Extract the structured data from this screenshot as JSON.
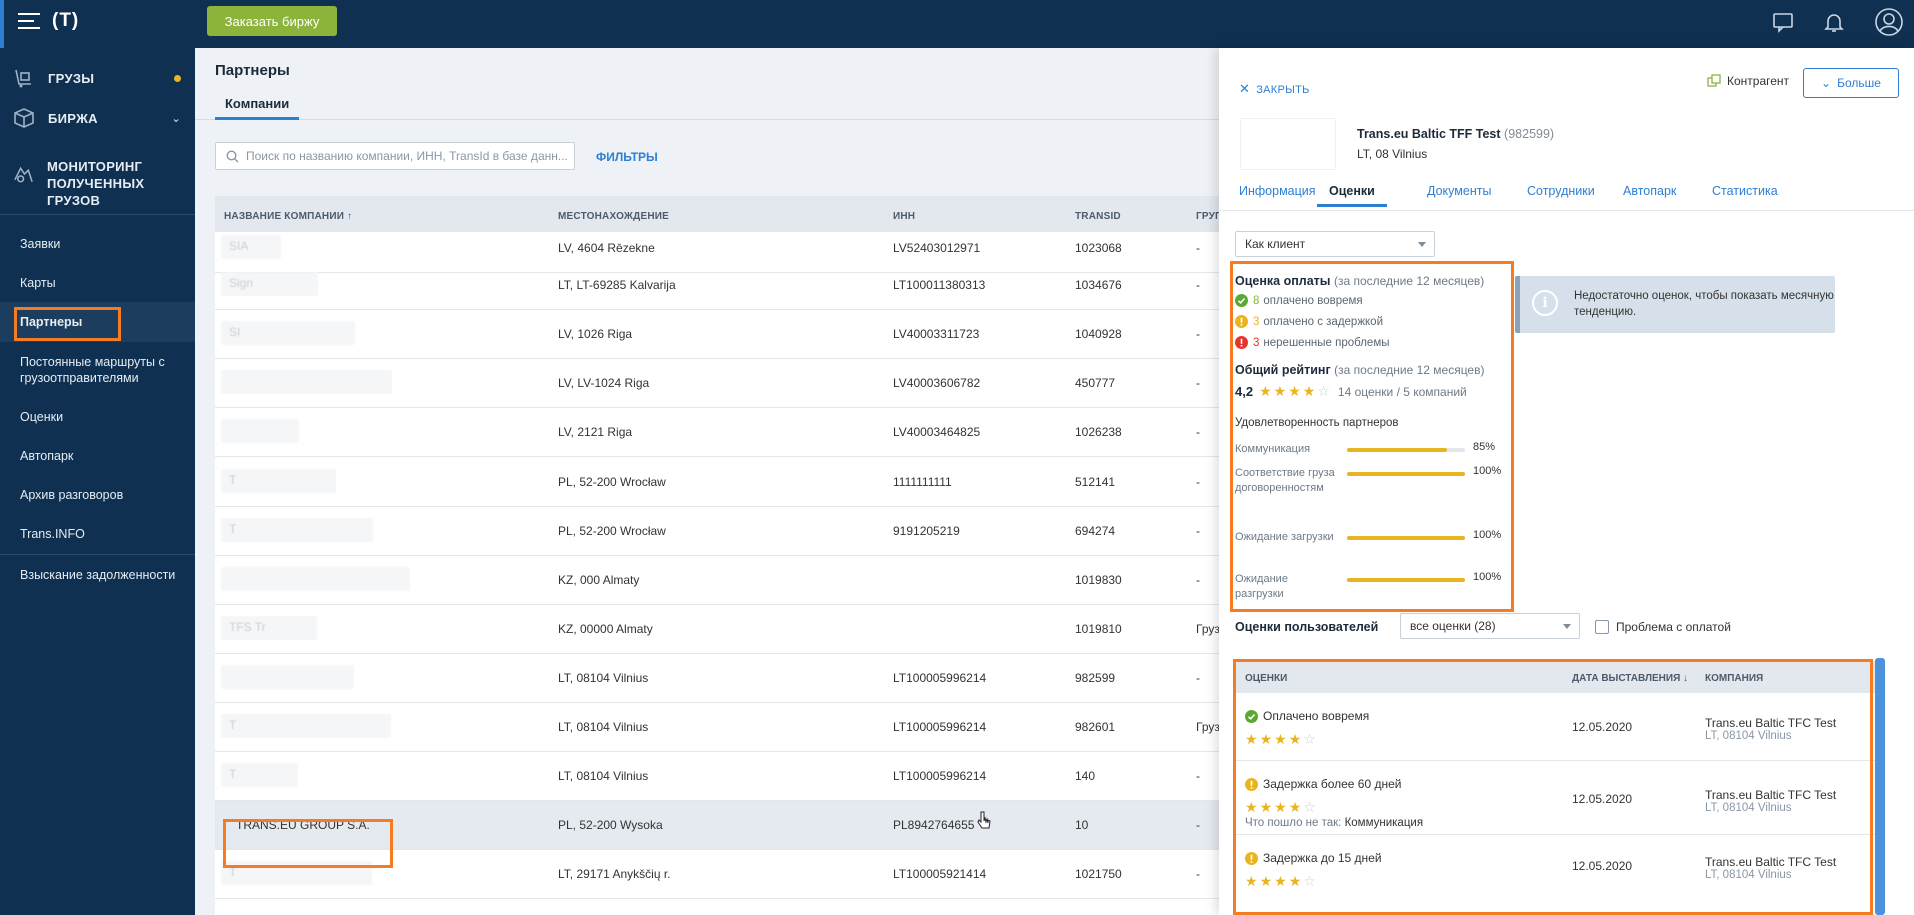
{
  "topbar": {
    "logo": "(T)",
    "order_button": "Заказать биржу"
  },
  "sidebar": {
    "main": [
      {
        "label": "ГРУЗЫ",
        "icon": "cargo-icon"
      },
      {
        "label": "БИРЖА",
        "icon": "exchange-icon"
      },
      {
        "label": "МОНИТОРИНГ",
        "label2": "ПОЛУЧЕННЫХ ГРУЗОВ",
        "icon": "monitoring-icon"
      }
    ],
    "items": [
      {
        "label": "Заявки"
      },
      {
        "label": "Карты"
      },
      {
        "label": "Партнеры"
      },
      {
        "label": "Постоянные маршруты с",
        "label2": "грузоотправителями"
      },
      {
        "label": "Оценки"
      },
      {
        "label": "Автопарк"
      },
      {
        "label": "Архив разговоров"
      },
      {
        "label": "Trans.INFO"
      },
      {
        "label": "Взыскание задолженности"
      }
    ]
  },
  "main": {
    "title": "Партнеры",
    "tab": "Компании",
    "search_placeholder": "Поиск по названию компании, ИНН, TransId в базе данн...",
    "filters": "ФИЛЬТРЫ",
    "columns": [
      "НАЗВАНИЕ КОМПАНИИ ↑",
      "МЕСТОНАХОЖДЕНИЕ",
      "ИНН",
      "TRANSID",
      "ГРУП"
    ],
    "rows": [
      {
        "name": "SIA",
        "location": "LV, 4604 Rēzekne",
        "inn": "LV52403012971",
        "transid": "1023068",
        "group": "-"
      },
      {
        "name": "Sign",
        "location": "LT, LT-69285 Kalvarija",
        "inn": "LT100011380313",
        "transid": "1034676",
        "group": "-"
      },
      {
        "name": "SI",
        "location": "LV, 1026 Riga",
        "inn": "LV40003311723",
        "transid": "1040928",
        "group": "-"
      },
      {
        "name": "",
        "location": "LV, LV-1024 Riga",
        "inn": "LV40003606782",
        "transid": "450777",
        "group": "-"
      },
      {
        "name": "",
        "location": "LV, 2121 Riga",
        "inn": "LV40003464825",
        "transid": "1026238",
        "group": "-"
      },
      {
        "name": "T",
        "location": "PL, 52-200 Wrocław",
        "inn": "1111111111",
        "transid": "512141",
        "group": "-"
      },
      {
        "name": "T",
        "location": "PL, 52-200 Wrocław",
        "inn": "9191205219",
        "transid": "694274",
        "group": "-"
      },
      {
        "name": "",
        "location": "KZ, 000 Almaty",
        "inn": "",
        "transid": "1019830",
        "group": "-"
      },
      {
        "name": "TFS Tr",
        "location": "KZ, 00000 Almaty",
        "inn": "",
        "transid": "1019810",
        "group": "Груз"
      },
      {
        "name": "",
        "location": "LT, 08104 Vilnius",
        "inn": "LT100005996214",
        "transid": "982599",
        "group": "-"
      },
      {
        "name": "T",
        "location": "LT, 08104 Vilnius",
        "inn": "LT100005996214",
        "transid": "982601",
        "group": "Груз"
      },
      {
        "name": "T",
        "location": "LT, 08104 Vilnius",
        "inn": "LT100005996214",
        "transid": "140",
        "group": "-"
      },
      {
        "name": "TRANS.EU GROUP S.A.",
        "location": "PL, 52-200 Wysoka",
        "inn": "PL8942764655",
        "transid": "10",
        "group": "-"
      },
      {
        "name": "T",
        "location": "LT, 29171 Anykščių r.",
        "inn": "LT100005921414",
        "transid": "1021750",
        "group": "-"
      }
    ]
  },
  "panel": {
    "close": "ЗАКРЫТЬ",
    "contractor": "Контрагент",
    "more": "Больше",
    "company_name": "Trans.eu Baltic TFF Test",
    "company_id": "(982599)",
    "company_location": "LT, 08 Vilnius",
    "tabs": [
      "Информация",
      "Оценки",
      "Документы",
      "Сотрудники",
      "Автопарк",
      "Статистика"
    ],
    "role_select": "Как клиент",
    "payment_title": "Оценка оплаты",
    "payment_period": "(за последние 12 месяцев)",
    "payments": [
      {
        "count": "8",
        "text": "оплачено вовремя",
        "status": "ok"
      },
      {
        "count": "3",
        "text": "оплачено с задержкой",
        "status": "warn"
      },
      {
        "count": "3",
        "text": "нерешенные проблемы",
        "status": "error"
      }
    ],
    "overall_title": "Общий рейтинг",
    "overall_period": "(за последние 12 месяцев)",
    "overall_value": "4,2",
    "overall_stars": 4,
    "overall_summary": "14 оценки / 5 компаний",
    "satisfaction_title": "Удовлетворенность партнеров",
    "satisfaction": [
      {
        "label": "Коммуникация",
        "pct": "85%",
        "value": 0.85
      },
      {
        "label": "Соответствие груза договоренностям",
        "pct": "100%",
        "value": 1.0
      },
      {
        "label": "Ожидание загрузки",
        "pct": "100%",
        "value": 1.0
      },
      {
        "label": "Ожидание разгрузки",
        "pct": "100%",
        "value": 1.0
      }
    ],
    "info_text": "Недостаточно оценок, чтобы показать месячную тенденцию.",
    "users_title": "Оценки пользователей",
    "users_select": "все оценки (28)",
    "payment_problem": "Проблема с оплатой",
    "ratings_columns": [
      "ОЦЕНКИ",
      "ДАТА ВЫСТАВЛЕНИЯ ↓",
      "КОМПАНИЯ"
    ],
    "ratings": [
      {
        "title": "Оплачено вовремя",
        "status": "ok",
        "stars": 4,
        "date": "12.05.2020",
        "company": "Trans.eu Baltic TFC Test",
        "location": "LT, 08104 Vilnius",
        "what_label": "",
        "what": ""
      },
      {
        "title": "Задержка более 60 дней",
        "status": "warn",
        "stars": 4,
        "date": "12.05.2020",
        "company": "Trans.eu Baltic TFC Test",
        "location": "LT, 08104 Vilnius",
        "what_label": "Что пошло не так:",
        "what": "Коммуникация"
      },
      {
        "title": "Задержка до 15 дней",
        "status": "warn",
        "stars": 4,
        "date": "12.05.2020",
        "company": "Trans.eu Baltic TFC Test",
        "location": "LT, 08104 Vilnius",
        "what_label": "",
        "what": ""
      }
    ]
  },
  "colors": {
    "navy": "#0f3050",
    "accent": "#2d7fd3",
    "highlight": "#f57c22",
    "green": "#8cb43b",
    "star": "#e8b520"
  }
}
